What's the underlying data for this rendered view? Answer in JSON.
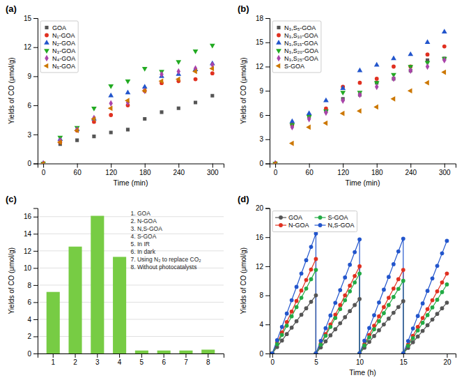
{
  "chart_data": [
    {
      "type": "scatter",
      "title": "(a)",
      "x_label": "Time (min)",
      "y_label": "Yields of CO (μmol/g)",
      "x": [
        0,
        30,
        60,
        90,
        120,
        150,
        180,
        210,
        240,
        270,
        300
      ],
      "series": [
        {
          "name": "GOA",
          "color": "#555555",
          "marker": "square",
          "values": [
            0,
            2.0,
            2.4,
            2.8,
            3.2,
            3.5,
            4.6,
            5.3,
            5.7,
            6.3,
            7.0
          ]
        },
        {
          "name": "N₁-GOA",
          "color": "#e03020",
          "marker": "circle",
          "values": [
            0,
            2.2,
            3.4,
            4.3,
            5.0,
            6.0,
            7.5,
            8.3,
            8.5,
            8.7,
            9.3
          ]
        },
        {
          "name": "N₂-GOA",
          "color": "#2255cc",
          "marker": "triangle-up",
          "values": [
            0,
            2.5,
            3.5,
            4.6,
            7.0,
            7.3,
            7.9,
            9.0,
            9.2,
            9.7,
            10.3
          ]
        },
        {
          "name": "N₃-GOA",
          "color": "#22aa22",
          "marker": "triangle-down",
          "values": [
            0,
            2.7,
            3.7,
            5.7,
            8.0,
            8.5,
            9.8,
            9.5,
            10.5,
            11.6,
            12.2
          ]
        },
        {
          "name": "N₄-GOA",
          "color": "#aa44aa",
          "marker": "diamond",
          "values": [
            0,
            2.4,
            3.5,
            4.7,
            6.2,
            6.3,
            7.5,
            9.2,
            9.5,
            9.8,
            10.2
          ]
        },
        {
          "name": "N₅-GOA",
          "color": "#cc7700",
          "marker": "triangle-left",
          "values": [
            0,
            2.2,
            3.4,
            4.6,
            5.7,
            6.5,
            7.5,
            8.5,
            8.7,
            9.5,
            9.8
          ]
        }
      ],
      "xlim": [
        -10,
        320
      ],
      "xticks": [
        0,
        60,
        120,
        180,
        240,
        300
      ],
      "ylim": [
        0,
        15
      ],
      "yticks": [
        0,
        3,
        6,
        9,
        12,
        15
      ],
      "grid": false,
      "legend": "top-left"
    },
    {
      "type": "scatter",
      "title": "(b)",
      "x_label": "Time (min)",
      "y_label": "Yields of CO (μmol/g)",
      "x": [
        0,
        30,
        60,
        90,
        120,
        150,
        180,
        210,
        240,
        270,
        300
      ],
      "series": [
        {
          "name": "N₃,S₅-GOA",
          "color": "#555555",
          "marker": "square",
          "values": [
            0,
            4.8,
            5.8,
            6.5,
            8.0,
            8.5,
            10.0,
            10.5,
            11.5,
            12.8,
            13.0
          ]
        },
        {
          "name": "N₃,S₁₀-GOA",
          "color": "#e03020",
          "marker": "circle",
          "values": [
            0,
            4.8,
            6.0,
            6.8,
            9.5,
            10.0,
            10.5,
            12.0,
            12.0,
            13.5,
            14.5
          ]
        },
        {
          "name": "N₃,S₁₅-GOA",
          "color": "#2255cc",
          "marker": "triangle-up",
          "values": [
            0,
            5.2,
            6.2,
            7.8,
            9.3,
            11.5,
            12.2,
            13.0,
            13.5,
            15.0,
            16.3
          ]
        },
        {
          "name": "N₃,S₂₀-GOA",
          "color": "#22aa22",
          "marker": "triangle-down",
          "values": [
            0,
            4.8,
            5.8,
            6.5,
            8.8,
            8.8,
            10.0,
            11.0,
            12.0,
            12.5,
            13.0
          ]
        },
        {
          "name": "N₃,S₂₅-GOA",
          "color": "#aa44aa",
          "marker": "diamond",
          "values": [
            0,
            4.5,
            5.5,
            6.3,
            7.8,
            8.5,
            9.5,
            10.5,
            11.5,
            12.0,
            12.8
          ]
        },
        {
          "name": "S-GOA",
          "color": "#cc7700",
          "marker": "triangle-left",
          "values": [
            0,
            2.5,
            4.5,
            5.0,
            6.2,
            6.5,
            7.0,
            8.0,
            9.0,
            10.0,
            11.3
          ]
        }
      ],
      "xlim": [
        -10,
        320
      ],
      "xticks": [
        0,
        60,
        120,
        180,
        240,
        300
      ],
      "ylim": [
        0,
        18
      ],
      "yticks": [
        0,
        3,
        6,
        9,
        12,
        15,
        18
      ],
      "grid": false,
      "legend": "top-left"
    },
    {
      "type": "bar",
      "title": "(c)",
      "y_label": "Yields of CO (μmol/g)",
      "categories": [
        "1",
        "2",
        "3",
        "4",
        "5",
        "6",
        "7",
        "8"
      ],
      "values": [
        7.2,
        12.5,
        16.1,
        11.3,
        0.35,
        0.35,
        0.35,
        0.45
      ],
      "color": "#77cc44",
      "annotations": [
        "1. GOA",
        "2. N-GOA",
        "3. N,S-GOA",
        "4. S-GOA",
        "5. In IR",
        "6. In dark",
        "7. Using N₂ to replace CO₂",
        "8. Without photocatalysts"
      ],
      "ylim": [
        0,
        17
      ],
      "yticks": [
        0,
        2,
        4,
        6,
        8,
        10,
        12,
        14,
        16
      ],
      "grid": true
    },
    {
      "type": "line",
      "title": "(d)",
      "x_label": "Time (h)",
      "y_label": "Yields of CO (μmol/g)",
      "marker": "circle",
      "line_style": "solid",
      "x": [
        0,
        0.5556,
        1.1111,
        1.6667,
        2.2222,
        2.7778,
        3.3333,
        3.8889,
        4.4444,
        5,
        5,
        5.5556,
        6.1111,
        6.6667,
        7.2222,
        7.7778,
        8.3333,
        8.8889,
        9.4444,
        10,
        10,
        10.5556,
        11.1111,
        11.6667,
        12.2222,
        12.7778,
        13.3333,
        13.8889,
        14.4444,
        15,
        15,
        15.5556,
        16.1111,
        16.6667,
        17.2222,
        17.7778,
        18.3333,
        18.8889,
        19.4444,
        20
      ],
      "series": [
        {
          "name": "GOA",
          "color": "#555555",
          "values": [
            0,
            0.8889,
            1.7778,
            2.6667,
            3.5556,
            4.4444,
            5.3333,
            6.2222,
            7.1111,
            8.0,
            0,
            0.8333,
            1.6667,
            2.5,
            3.3333,
            4.1667,
            5.0,
            5.8333,
            6.6667,
            7.5,
            0,
            0.8,
            1.6,
            2.4,
            3.2,
            4.0,
            4.8,
            5.6,
            6.4,
            7.2,
            0,
            0.7778,
            1.5556,
            2.3333,
            3.1111,
            3.8889,
            4.6667,
            5.4444,
            6.2222,
            7.0
          ]
        },
        {
          "name": "N-GOA",
          "color": "#e03020",
          "values": [
            0,
            1.4444,
            2.8889,
            4.3333,
            5.7778,
            7.2222,
            8.6667,
            10.1111,
            11.5556,
            13.0,
            0,
            1.3333,
            2.6667,
            4.0,
            5.3333,
            6.6667,
            8.0,
            9.3333,
            10.6667,
            12.0,
            0,
            1.2778,
            2.5556,
            3.8333,
            5.1111,
            6.3889,
            7.6667,
            8.9444,
            10.2222,
            11.5,
            0,
            1.2222,
            2.4444,
            3.6667,
            4.8889,
            6.1111,
            7.3333,
            8.5556,
            9.7778,
            11.0
          ]
        },
        {
          "name": "S-GOA",
          "color": "#22aa44",
          "values": [
            0,
            1.2778,
            2.5556,
            3.8333,
            5.1111,
            6.3889,
            7.6667,
            8.9444,
            10.2222,
            11.5,
            0,
            1.2222,
            2.4444,
            3.6667,
            4.8889,
            6.1111,
            7.3333,
            8.5556,
            9.7778,
            11.0,
            0,
            1.1111,
            2.2222,
            3.3333,
            4.4444,
            5.5556,
            6.6667,
            7.7778,
            8.8889,
            10.0,
            0,
            1.0556,
            2.1111,
            3.1667,
            4.2222,
            5.2778,
            6.3333,
            7.3889,
            8.4444,
            9.5
          ]
        },
        {
          "name": "N,S-GOA",
          "color": "#2255cc",
          "values": [
            0,
            1.8333,
            3.6667,
            5.5,
            7.3333,
            9.1667,
            11.0,
            12.8333,
            14.6667,
            16.5,
            0,
            1.7444,
            3.4889,
            5.2333,
            6.9778,
            8.7222,
            10.4667,
            12.2111,
            13.9556,
            15.7,
            0,
            1.7556,
            3.5111,
            5.2667,
            7.0222,
            8.7778,
            10.5333,
            12.2889,
            14.0444,
            15.8,
            0,
            1.7222,
            3.4444,
            5.1667,
            6.8889,
            8.6111,
            10.3333,
            12.0556,
            13.7778,
            15.5
          ]
        }
      ],
      "xlim": [
        -0.3,
        21
      ],
      "xticks": [
        0,
        5,
        10,
        15,
        20
      ],
      "ylim": [
        0,
        20
      ],
      "yticks": [
        0,
        4,
        8,
        12,
        16,
        20
      ],
      "grid": false,
      "legend": "top-left"
    }
  ]
}
